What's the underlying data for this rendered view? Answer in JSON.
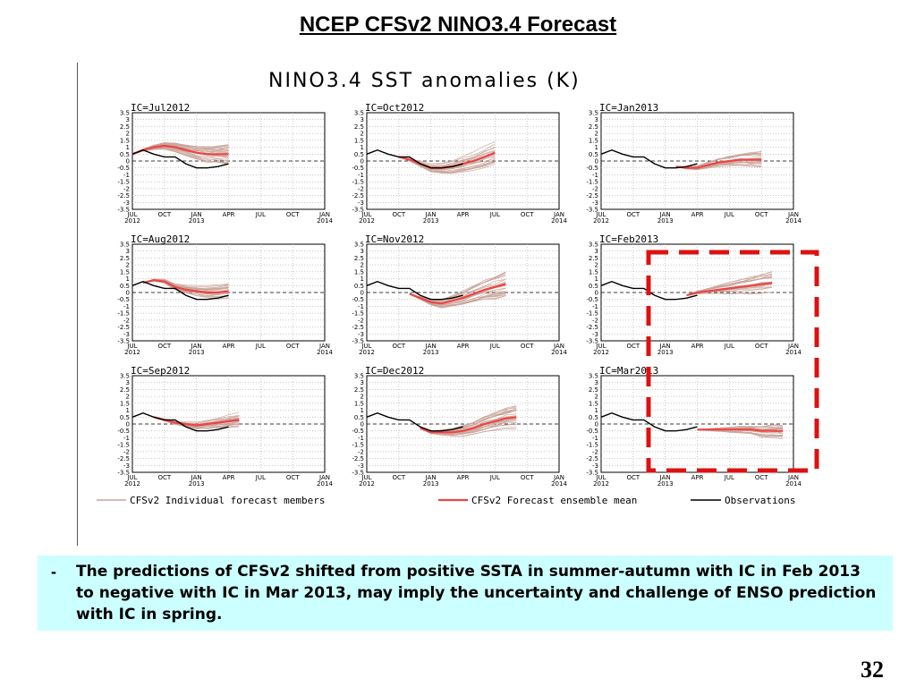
{
  "slide": {
    "title": "NCEP CFSv2 NINO3.4 Forecast",
    "page_number": "32"
  },
  "note": {
    "bullet": "-",
    "text": "The predictions of CFSv2 shifted from positive SSTA in summer-autumn with IC in Feb 2013 to negative with IC in Mar 2013, may imply the uncertainty and challenge of ENSO prediction with IC in spring."
  },
  "colors": {
    "members": "#c8a49a",
    "mean": "#ee4444",
    "observations": "#000000",
    "highlight": "#dd1111",
    "note_background": "#ccffff"
  },
  "chart_data": {
    "type": "line",
    "title": "NINO3.4 SST anomalies (K)",
    "y_ticks": [
      "3.5",
      "3",
      "2.5",
      "2",
      "1.5",
      "1",
      "0.5",
      "0",
      "-0.5",
      "-1",
      "-1.5",
      "-2",
      "-2.5",
      "-3",
      "-3.5"
    ],
    "ylim": [
      -3.5,
      3.5
    ],
    "x_ticks": [
      {
        "month": "JUL",
        "year": "2012"
      },
      {
        "month": "OCT",
        "year": ""
      },
      {
        "month": "JAN",
        "year": "2013"
      },
      {
        "month": "APR",
        "year": ""
      },
      {
        "month": "JUL",
        "year": ""
      },
      {
        "month": "OCT",
        "year": ""
      },
      {
        "month": "JAN",
        "year": "2014"
      }
    ],
    "xlim": [
      "2012-07",
      "2014-01"
    ],
    "grid": true,
    "legend": {
      "position": "bottom",
      "items": [
        {
          "label": "CFSv2 Individual forecast members",
          "color": "#c8a49a"
        },
        {
          "label": "CFSv2 Forecast ensemble mean",
          "color": "#ee4444"
        },
        {
          "label": "Observations",
          "color": "#000000"
        }
      ]
    },
    "observations": {
      "x": [
        "2012-07",
        "2012-08",
        "2012-09",
        "2012-10",
        "2012-11",
        "2012-12",
        "2013-01",
        "2013-02",
        "2013-03",
        "2013-04"
      ],
      "values": [
        0.5,
        0.8,
        0.5,
        0.3,
        0.3,
        -0.2,
        -0.5,
        -0.5,
        -0.4,
        -0.2
      ]
    },
    "panels": [
      {
        "title": "IC=Jul2012",
        "mean_x": [
          "2012-07",
          "2012-08",
          "2012-09",
          "2012-10",
          "2012-11",
          "2012-12",
          "2013-01",
          "2013-02",
          "2013-03",
          "2013-04"
        ],
        "mean_values": [
          0.5,
          0.8,
          1.0,
          1.1,
          1.0,
          0.8,
          0.6,
          0.5,
          0.5,
          0.5
        ],
        "spread": 0.7
      },
      {
        "title": "IC=Aug2012",
        "mean_x": [
          "2012-08",
          "2012-09",
          "2012-10",
          "2012-11",
          "2012-12",
          "2013-01",
          "2013-02",
          "2013-03",
          "2013-04"
        ],
        "mean_values": [
          0.7,
          0.9,
          0.8,
          0.4,
          0.2,
          0.1,
          0.0,
          0.0,
          0.1
        ],
        "spread": 0.6
      },
      {
        "title": "IC=Sep2012",
        "mean_x": [
          "2012-09",
          "2012-10",
          "2012-11",
          "2012-12",
          "2013-01",
          "2013-02",
          "2013-03",
          "2013-04",
          "2013-05"
        ],
        "mean_values": [
          0.5,
          0.3,
          0.1,
          0.0,
          -0.1,
          0.0,
          0.1,
          0.2,
          0.3
        ],
        "spread": 0.5
      },
      {
        "title": "IC=Oct2012",
        "mean_x": [
          "2012-10",
          "2012-11",
          "2012-12",
          "2013-01",
          "2013-02",
          "2013-03",
          "2013-04",
          "2013-05",
          "2013-06",
          "2013-07"
        ],
        "mean_values": [
          0.3,
          0.1,
          -0.2,
          -0.5,
          -0.5,
          -0.4,
          -0.2,
          0.0,
          0.3,
          0.6
        ],
        "spread": 0.9
      },
      {
        "title": "IC=Nov2012",
        "mean_x": [
          "2012-11",
          "2012-12",
          "2013-01",
          "2013-02",
          "2013-03",
          "2013-04",
          "2013-05",
          "2013-06",
          "2013-07",
          "2013-08"
        ],
        "mean_values": [
          -0.1,
          -0.4,
          -0.7,
          -0.8,
          -0.6,
          -0.4,
          -0.1,
          0.2,
          0.4,
          0.6
        ],
        "spread": 0.9
      },
      {
        "title": "IC=Dec2012",
        "mean_x": [
          "2012-12",
          "2013-01",
          "2013-02",
          "2013-03",
          "2013-04",
          "2013-05",
          "2013-06",
          "2013-07",
          "2013-08",
          "2013-09"
        ],
        "mean_values": [
          -0.3,
          -0.6,
          -0.6,
          -0.6,
          -0.5,
          -0.3,
          0.0,
          0.2,
          0.4,
          0.5
        ],
        "spread": 0.9
      },
      {
        "title": "IC=Jan2013",
        "mean_x": [
          "2013-02",
          "2013-03",
          "2013-04",
          "2013-05",
          "2013-06",
          "2013-07",
          "2013-08",
          "2013-09",
          "2013-10"
        ],
        "mean_values": [
          -0.4,
          -0.5,
          -0.5,
          -0.3,
          -0.1,
          0.0,
          0.1,
          0.1,
          0.1
        ],
        "spread": 0.6
      },
      {
        "title": "IC=Feb2013",
        "mean_x": [
          "2013-03",
          "2013-04",
          "2013-05",
          "2013-06",
          "2013-07",
          "2013-08",
          "2013-09",
          "2013-10",
          "2013-11"
        ],
        "mean_values": [
          -0.2,
          0.0,
          0.1,
          0.2,
          0.3,
          0.4,
          0.5,
          0.6,
          0.7
        ],
        "spread": 0.8
      },
      {
        "title": "IC=Mar2013",
        "mean_x": [
          "2013-04",
          "2013-05",
          "2013-06",
          "2013-07",
          "2013-08",
          "2013-09",
          "2013-10",
          "2013-11",
          "2013-12"
        ],
        "mean_values": [
          -0.4,
          -0.4,
          -0.4,
          -0.4,
          -0.4,
          -0.4,
          -0.5,
          -0.5,
          -0.5
        ],
        "spread": 0.5
      }
    ]
  }
}
